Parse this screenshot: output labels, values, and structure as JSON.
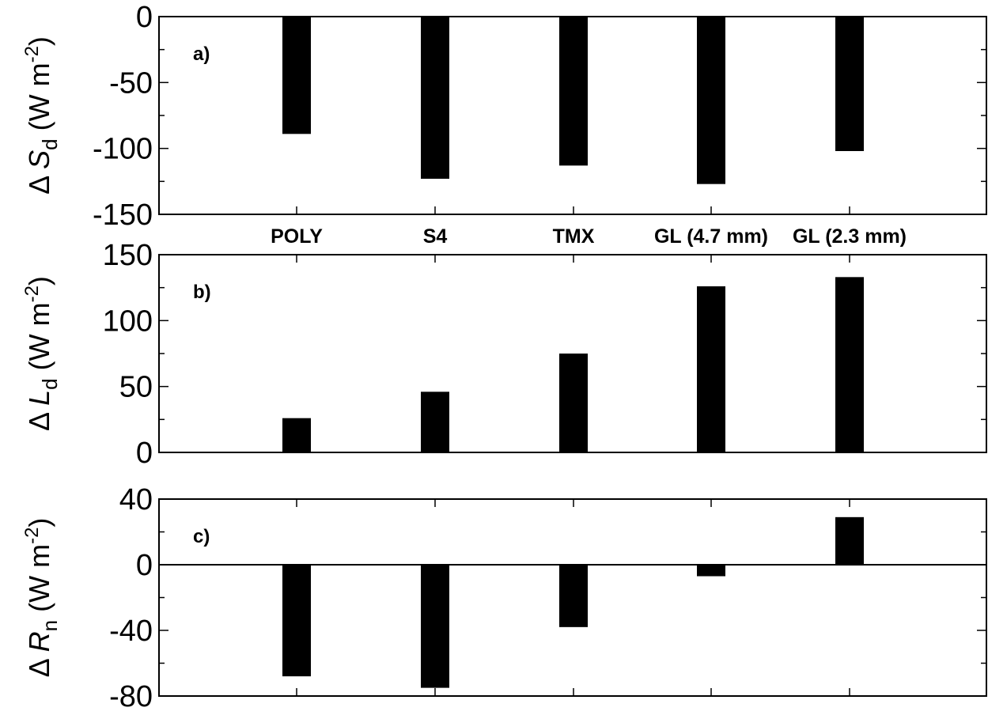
{
  "chart_data": [
    {
      "type": "bar",
      "panel_label": "a)",
      "ylabel": {
        "prefix": "Δ ",
        "var": "S",
        "sub": "d",
        "units_pre": " (W m",
        "units_sup": "-2",
        "units_post": ")"
      },
      "categories": [
        "POLY",
        "S4",
        "TMX",
        "GL (4.7 mm)",
        "GL (2.3 mm)"
      ],
      "values": [
        -89,
        -123,
        -113,
        -127,
        -102
      ],
      "ylim": [
        -150,
        0
      ],
      "yticks": [
        "0",
        "-50",
        "-100",
        "-150"
      ],
      "show_category_labels": true
    },
    {
      "type": "bar",
      "panel_label": "b)",
      "ylabel": {
        "prefix": "Δ ",
        "var": "L",
        "sub": "d",
        "units_pre": " (W m",
        "units_sup": "-2",
        "units_post": ")"
      },
      "categories": [
        "POLY",
        "S4",
        "TMX",
        "GL (4.7 mm)",
        "GL (2.3 mm)"
      ],
      "values": [
        26,
        46,
        75,
        126,
        133
      ],
      "ylim": [
        0,
        150
      ],
      "yticks": [
        "150",
        "100",
        "50",
        "0"
      ],
      "show_category_labels": false
    },
    {
      "type": "bar",
      "panel_label": "c)",
      "ylabel": {
        "prefix": "Δ ",
        "var": "R",
        "sub": "n",
        "units_pre": " (W m",
        "units_sup": "-2",
        "units_post": ")"
      },
      "categories": [
        "POLY",
        "S4",
        "TMX",
        "GL (4.7 mm)",
        "GL (2.3 mm)"
      ],
      "values": [
        -68,
        -75,
        -38,
        -7,
        29
      ],
      "ylim": [
        -80,
        40
      ],
      "yticks": [
        "40",
        "0",
        "-40",
        "-80"
      ],
      "show_category_labels": false,
      "zero_line": true
    }
  ]
}
